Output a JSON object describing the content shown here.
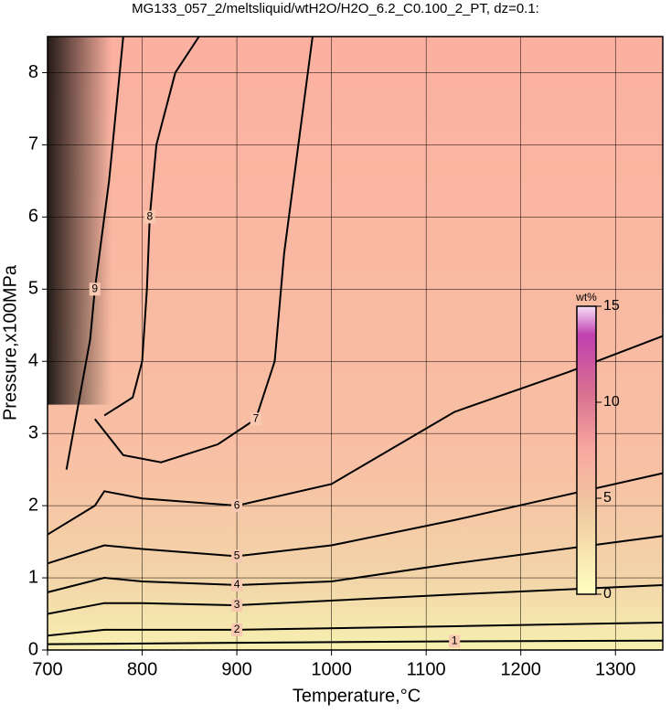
{
  "chart_data": {
    "type": "contour",
    "title": "MG133_057_2/meltsliquid/wtH2O/H2O_6.2_C0.100_2_PT, dz=0.1:",
    "xlabel": "Temperature,°C",
    "ylabel": "Pressure,x100MPa",
    "xlim": [
      700,
      1350
    ],
    "ylim": [
      0,
      8.5
    ],
    "xticks": [
      700,
      800,
      900,
      1000,
      1100,
      1200,
      1300
    ],
    "yticks": [
      0,
      1,
      2,
      3,
      4,
      5,
      6,
      7,
      8
    ],
    "grid": true,
    "contours": [
      {
        "level": 1,
        "x": [
          700,
          900,
          1130,
          1350
        ],
        "y": [
          0.08,
          0.1,
          0.12,
          0.13
        ]
      },
      {
        "level": 2,
        "x": [
          700,
          760,
          900,
          1130,
          1350
        ],
        "y": [
          0.2,
          0.28,
          0.28,
          0.33,
          0.38
        ]
      },
      {
        "level": 3,
        "x": [
          700,
          760,
          800,
          900,
          1130,
          1350
        ],
        "y": [
          0.5,
          0.65,
          0.65,
          0.62,
          0.77,
          0.9
        ]
      },
      {
        "level": 4,
        "x": [
          700,
          760,
          800,
          900,
          1000,
          1130,
          1350
        ],
        "y": [
          0.8,
          1.0,
          0.95,
          0.9,
          0.95,
          1.2,
          1.58
        ]
      },
      {
        "level": 5,
        "x": [
          700,
          760,
          800,
          900,
          1000,
          1130,
          1350
        ],
        "y": [
          1.2,
          1.45,
          1.4,
          1.3,
          1.45,
          1.8,
          2.45
        ]
      },
      {
        "level": 6,
        "x": [
          700,
          750,
          760,
          800,
          900,
          1000,
          1130,
          1250,
          1350
        ],
        "y": [
          1.6,
          2.0,
          2.2,
          2.1,
          2.0,
          2.3,
          3.3,
          3.85,
          4.35
        ]
      },
      {
        "level": 7,
        "x": [
          750,
          780,
          820,
          880,
          920,
          940,
          950,
          965,
          980
        ],
        "y": [
          3.2,
          2.7,
          2.6,
          2.85,
          3.2,
          4,
          5.5,
          7,
          8.5
        ]
      },
      {
        "level": 8,
        "x": [
          760,
          790,
          800,
          805,
          808,
          815,
          835,
          860
        ],
        "y": [
          3.25,
          3.5,
          4,
          5,
          6,
          7,
          8,
          8.5
        ]
      },
      {
        "level": 9,
        "x": [
          720,
          745,
          750,
          765,
          780
        ],
        "y": [
          2.5,
          4.3,
          5,
          6.5,
          8.5
        ]
      }
    ],
    "colorbar": {
      "label": "wt%",
      "lim": [
        0,
        15
      ],
      "ticks": [
        0,
        5,
        10,
        15
      ]
    }
  }
}
